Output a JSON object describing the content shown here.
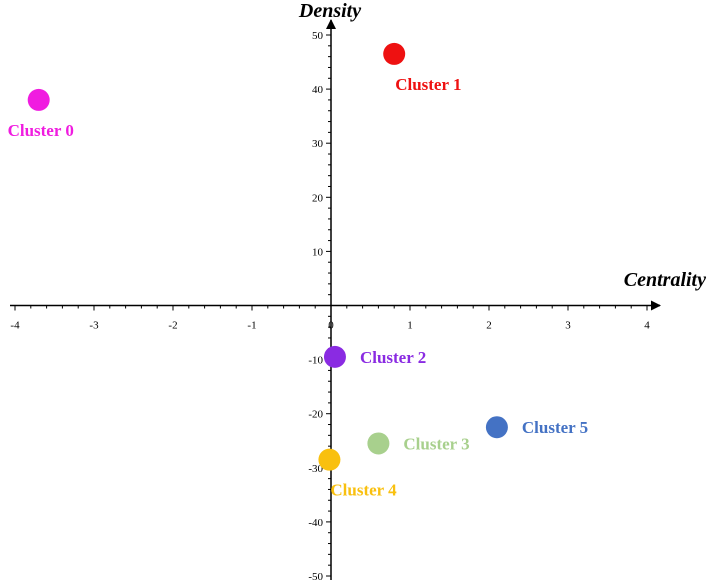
{
  "chart_data": {
    "type": "scatter",
    "xlabel": "Centrality",
    "ylabel": "Density",
    "xlim": [
      -4,
      4
    ],
    "ylim": [
      -50,
      50
    ],
    "x_ticks": [
      "-4",
      "-3",
      "-2",
      "-1",
      "0",
      "1",
      "2",
      "3",
      "4"
    ],
    "y_ticks": [
      "50",
      "40",
      "30",
      "20",
      "10",
      "-10",
      "-20",
      "-30",
      "-40",
      "-50"
    ],
    "grid": false,
    "points": [
      {
        "label": "Cluster 0",
        "x": -3.7,
        "y": 38,
        "color": "#f01ce0",
        "label_pos": "below"
      },
      {
        "label": "Cluster 1",
        "x": 0.8,
        "y": 46.5,
        "color": "#ee1111",
        "label_pos": "below-right"
      },
      {
        "label": "Cluster 2",
        "x": 0.05,
        "y": -9.5,
        "color": "#8a2be2",
        "label_pos": "right"
      },
      {
        "label": "Cluster 3",
        "x": 0.6,
        "y": -25.5,
        "color": "#a8d08d",
        "label_pos": "right"
      },
      {
        "label": "Cluster 4",
        "x": -0.02,
        "y": -28.5,
        "color": "#f9c00f",
        "label_pos": "below-right"
      },
      {
        "label": "Cluster 5",
        "x": 2.1,
        "y": -22.5,
        "color": "#4472c4",
        "label_pos": "right"
      }
    ]
  }
}
